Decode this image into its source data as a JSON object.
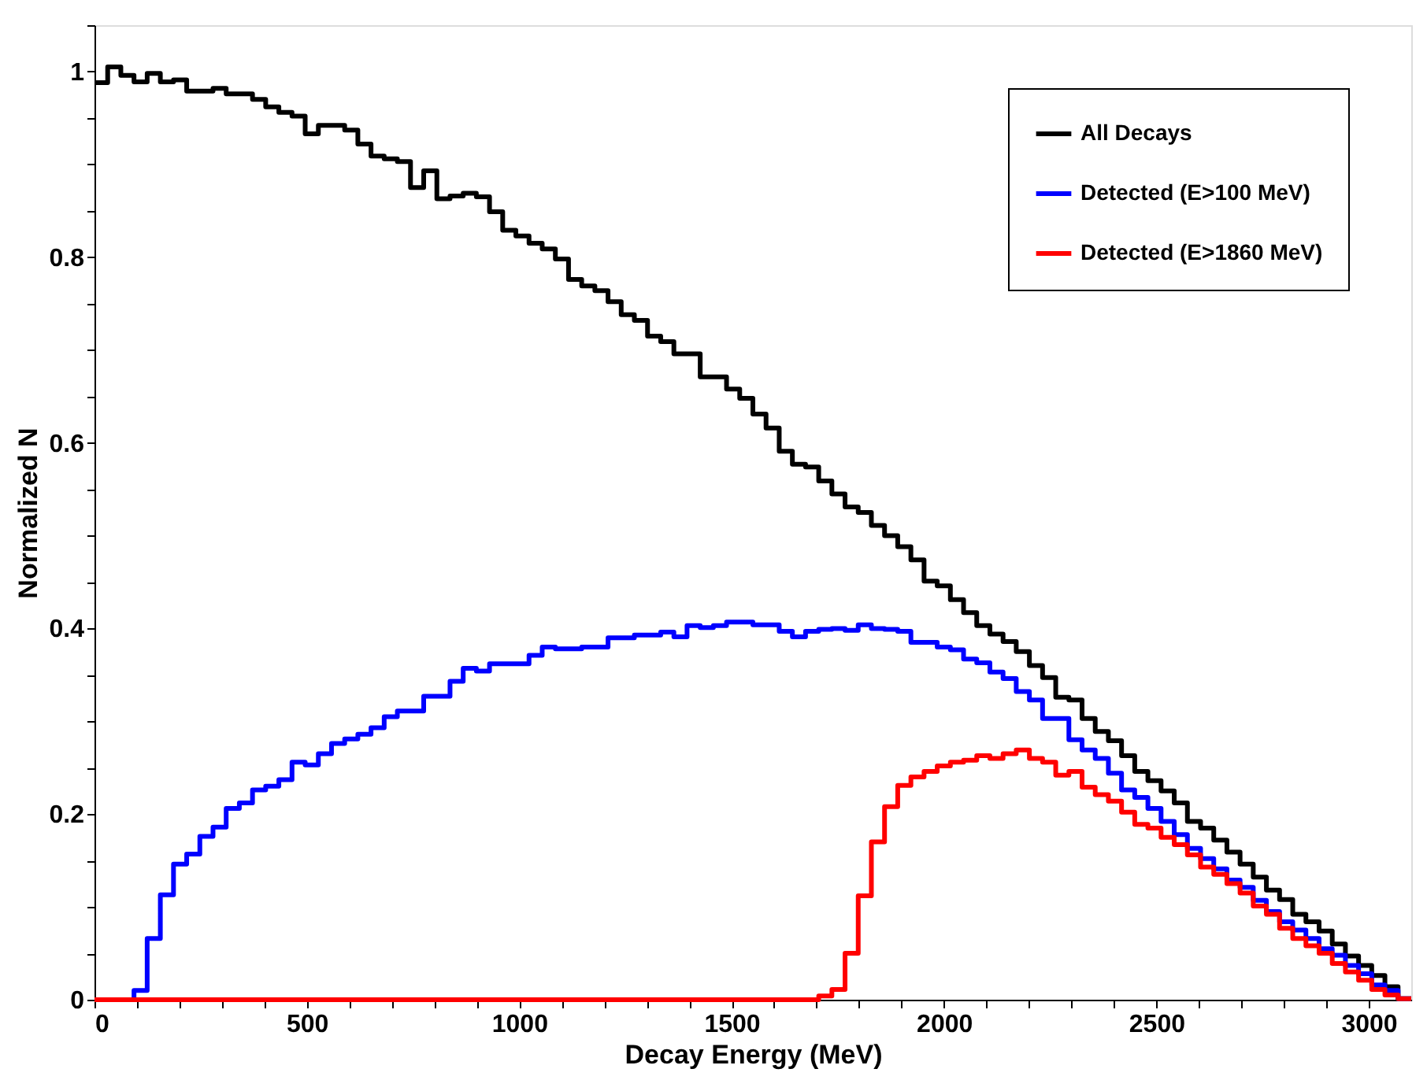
{
  "chart_data": {
    "type": "histogram",
    "xlabel": "Decay Energy (MeV)",
    "ylabel": "Normalized N",
    "bins": [
      0,
      31,
      62,
      93,
      124,
      155,
      186,
      217,
      248,
      279,
      310,
      341,
      372,
      403,
      434,
      465,
      496,
      527,
      558,
      589,
      620,
      651,
      682,
      713,
      744,
      775,
      806,
      837,
      868,
      899,
      930,
      961,
      992,
      1023,
      1054,
      1085,
      1116,
      1147,
      1178,
      1209,
      1240,
      1271,
      1302,
      1333,
      1364,
      1395,
      1426,
      1457,
      1488,
      1519,
      1550,
      1581,
      1612,
      1643,
      1674,
      1705,
      1736,
      1767,
      1798,
      1829,
      1860,
      1891,
      1922,
      1953,
      1984,
      2015,
      2046,
      2077,
      2108,
      2139,
      2170,
      2201,
      2232,
      2263,
      2294,
      2325,
      2356,
      2387,
      2418,
      2449,
      2480,
      2511,
      2542,
      2573,
      2604,
      2635,
      2666,
      2697,
      2728,
      2759,
      2790,
      2821,
      2852,
      2883,
      2914,
      2945,
      2976,
      3007,
      3038,
      3069,
      3100
    ],
    "series": [
      {
        "name": "All Decays",
        "color": "#000000",
        "values": [
          0.988,
          1.005,
          0.996,
          0.989,
          0.998,
          0.989,
          0.991,
          0.979,
          0.979,
          0.982,
          0.976,
          0.976,
          0.97,
          0.962,
          0.956,
          0.952,
          0.933,
          0.942,
          0.942,
          0.937,
          0.922,
          0.909,
          0.906,
          0.903,
          0.875,
          0.893,
          0.863,
          0.866,
          0.869,
          0.865,
          0.849,
          0.829,
          0.823,
          0.815,
          0.809,
          0.798,
          0.776,
          0.769,
          0.764,
          0.752,
          0.738,
          0.732,
          0.715,
          0.709,
          0.696,
          0.696,
          0.671,
          0.671,
          0.658,
          0.648,
          0.631,
          0.616,
          0.591,
          0.577,
          0.574,
          0.559,
          0.545,
          0.531,
          0.525,
          0.511,
          0.5,
          0.488,
          0.474,
          0.451,
          0.446,
          0.431,
          0.417,
          0.403,
          0.394,
          0.386,
          0.375,
          0.36,
          0.347,
          0.326,
          0.323,
          0.303,
          0.289,
          0.279,
          0.263,
          0.246,
          0.236,
          0.225,
          0.212,
          0.192,
          0.185,
          0.172,
          0.159,
          0.146,
          0.132,
          0.118,
          0.108,
          0.092,
          0.084,
          0.074,
          0.06,
          0.047,
          0.037,
          0.026,
          0.014,
          0.001
        ]
      },
      {
        "name": "Detected (E>100 MeV)",
        "color": "#0000ff",
        "values": [
          0,
          0,
          0,
          0.01,
          0.066,
          0.113,
          0.146,
          0.157,
          0.176,
          0.186,
          0.206,
          0.212,
          0.226,
          0.23,
          0.237,
          0.256,
          0.253,
          0.265,
          0.276,
          0.281,
          0.286,
          0.293,
          0.305,
          0.311,
          0.311,
          0.327,
          0.327,
          0.343,
          0.357,
          0.354,
          0.362,
          0.362,
          0.362,
          0.371,
          0.38,
          0.378,
          0.378,
          0.38,
          0.38,
          0.39,
          0.39,
          0.393,
          0.393,
          0.396,
          0.391,
          0.403,
          0.401,
          0.403,
          0.407,
          0.407,
          0.404,
          0.404,
          0.397,
          0.391,
          0.397,
          0.399,
          0.4,
          0.398,
          0.404,
          0.4,
          0.399,
          0.397,
          0.385,
          0.385,
          0.38,
          0.377,
          0.367,
          0.363,
          0.353,
          0.346,
          0.332,
          0.323,
          0.303,
          0.303,
          0.28,
          0.269,
          0.26,
          0.244,
          0.226,
          0.218,
          0.206,
          0.192,
          0.178,
          0.163,
          0.152,
          0.141,
          0.129,
          0.121,
          0.107,
          0.095,
          0.084,
          0.075,
          0.066,
          0.055,
          0.048,
          0.037,
          0.028,
          0.016,
          0.01,
          0.001
        ]
      },
      {
        "name": "Detected (E>1860 MeV)",
        "color": "#ff0000",
        "values": [
          0,
          0,
          0,
          0,
          0,
          0,
          0,
          0,
          0,
          0,
          0,
          0,
          0,
          0,
          0,
          0,
          0,
          0,
          0,
          0,
          0,
          0,
          0,
          0,
          0,
          0,
          0,
          0,
          0,
          0,
          0,
          0,
          0,
          0,
          0,
          0,
          0,
          0,
          0,
          0,
          0,
          0,
          0,
          0,
          0,
          0,
          0,
          0,
          0,
          0,
          0,
          0,
          0,
          0,
          0,
          0.004,
          0.011,
          0.05,
          0.112,
          0.17,
          0.208,
          0.231,
          0.24,
          0.246,
          0.252,
          0.256,
          0.258,
          0.263,
          0.26,
          0.265,
          0.269,
          0.26,
          0.256,
          0.242,
          0.246,
          0.229,
          0.221,
          0.214,
          0.202,
          0.189,
          0.185,
          0.175,
          0.167,
          0.156,
          0.143,
          0.135,
          0.125,
          0.115,
          0.101,
          0.092,
          0.077,
          0.066,
          0.058,
          0.05,
          0.039,
          0.03,
          0.021,
          0.011,
          0.005,
          0.001
        ]
      }
    ],
    "xlim": [
      0,
      3100
    ],
    "xticks": [
      0,
      {
        "value": 100,
        "label": null
      },
      {
        "value": 200,
        "label": null
      },
      {
        "value": 300,
        "label": null
      },
      {
        "value": 400,
        "label": null
      },
      500,
      {
        "value": 600,
        "label": null
      },
      {
        "value": 700,
        "label": null
      },
      {
        "value": 800,
        "label": null
      },
      {
        "value": 900,
        "label": null
      },
      1000,
      {
        "value": 1100,
        "label": null
      },
      {
        "value": 1200,
        "label": null
      },
      {
        "value": 1300,
        "label": null
      },
      {
        "value": 1400,
        "label": null
      },
      1500,
      {
        "value": 1600,
        "label": null
      },
      {
        "value": 1700,
        "label": null
      },
      {
        "value": 1800,
        "label": null
      },
      {
        "value": 1900,
        "label": null
      },
      2000,
      {
        "value": 2100,
        "label": null
      },
      {
        "value": 2200,
        "label": null
      },
      {
        "value": 2300,
        "label": null
      },
      {
        "value": 2400,
        "label": null
      },
      2500,
      {
        "value": 2600,
        "label": null
      },
      {
        "value": 2700,
        "label": null
      },
      {
        "value": 2800,
        "label": null
      },
      {
        "value": 2900,
        "label": null
      },
      3000
    ],
    "ylim": [
      0,
      1.05
    ],
    "yticks": [
      0,
      {
        "value": 0.05,
        "label": null
      },
      {
        "value": 0.1,
        "label": null
      },
      {
        "value": 0.15,
        "label": null
      },
      0.2,
      {
        "value": 0.25,
        "label": null
      },
      {
        "value": 0.3,
        "label": null
      },
      {
        "value": 0.35,
        "label": null
      },
      0.4,
      {
        "value": 0.45,
        "label": null
      },
      {
        "value": 0.5,
        "label": null
      },
      {
        "value": 0.55,
        "label": null
      },
      0.6,
      {
        "value": 0.65,
        "label": null
      },
      {
        "value": 0.7,
        "label": null
      },
      {
        "value": 0.75,
        "label": null
      },
      0.8,
      {
        "value": 0.85,
        "label": null
      },
      {
        "value": 0.9,
        "label": null
      },
      {
        "value": 0.95,
        "label": null
      },
      1,
      {
        "value": 1.05,
        "label": null
      }
    ],
    "legend": "top right",
    "grid": false,
    "line_style": "solid"
  }
}
